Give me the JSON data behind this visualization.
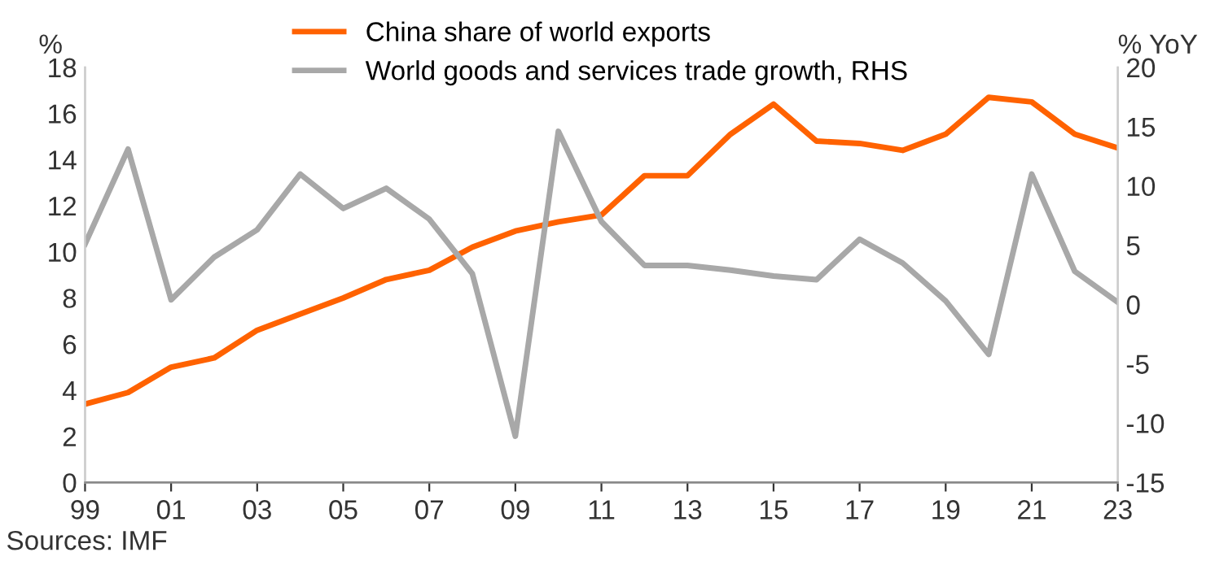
{
  "chart_data": {
    "type": "line",
    "ylabel": "%",
    "y2label": "% YoY",
    "x": [
      1999,
      2000,
      2001,
      2002,
      2003,
      2004,
      2005,
      2006,
      2007,
      2008,
      2009,
      2010,
      2011,
      2012,
      2013,
      2014,
      2015,
      2016,
      2017,
      2018,
      2019,
      2020,
      2021,
      2022,
      2023
    ],
    "series": [
      {
        "name": "China share of world exports",
        "color": "#ff6200",
        "values": [
          3.4,
          3.9,
          5.0,
          5.4,
          6.6,
          7.3,
          8.0,
          8.8,
          9.2,
          10.2,
          10.9,
          11.3,
          11.6,
          13.3,
          13.3,
          15.1,
          16.4,
          14.8,
          14.7,
          14.4,
          15.1,
          16.7,
          16.5,
          15.1,
          14.5
        ]
      },
      {
        "name": "World goods and services trade growth, RHS",
        "color": "#a8a8a8",
        "axis": "y2",
        "values": [
          5.1,
          13.1,
          0.4,
          4.0,
          6.3,
          11.0,
          8.1,
          9.8,
          7.2,
          2.6,
          -11.1,
          14.6,
          7.0,
          3.3,
          3.3,
          2.9,
          2.4,
          2.1,
          5.5,
          3.5,
          0.3,
          -4.2,
          11.0,
          2.8,
          0.2
        ]
      }
    ],
    "xlim": [
      1999,
      2023
    ],
    "xticks": [
      {
        "value": 1999,
        "label": "99"
      },
      {
        "value": 2001,
        "label": "01"
      },
      {
        "value": 2003,
        "label": "03"
      },
      {
        "value": 2005,
        "label": "05"
      },
      {
        "value": 2007,
        "label": "07"
      },
      {
        "value": 2009,
        "label": "09"
      },
      {
        "value": 2011,
        "label": "11"
      },
      {
        "value": 2013,
        "label": "13"
      },
      {
        "value": 2015,
        "label": "15"
      },
      {
        "value": 2017,
        "label": "17"
      },
      {
        "value": 2019,
        "label": "19"
      },
      {
        "value": 2021,
        "label": "21"
      },
      {
        "value": 2023,
        "label": "23"
      }
    ],
    "ylim": [
      0,
      18
    ],
    "yticks": [
      0,
      2,
      4,
      6,
      8,
      10,
      12,
      14,
      16,
      18
    ],
    "y2lim": [
      -15,
      20
    ],
    "y2ticks": [
      -15,
      -10,
      -5,
      0,
      5,
      10,
      15,
      20
    ],
    "legend": "top",
    "grid": false,
    "marker": "none",
    "line_style": "solid",
    "annotations": [
      "Sources: IMF"
    ]
  }
}
